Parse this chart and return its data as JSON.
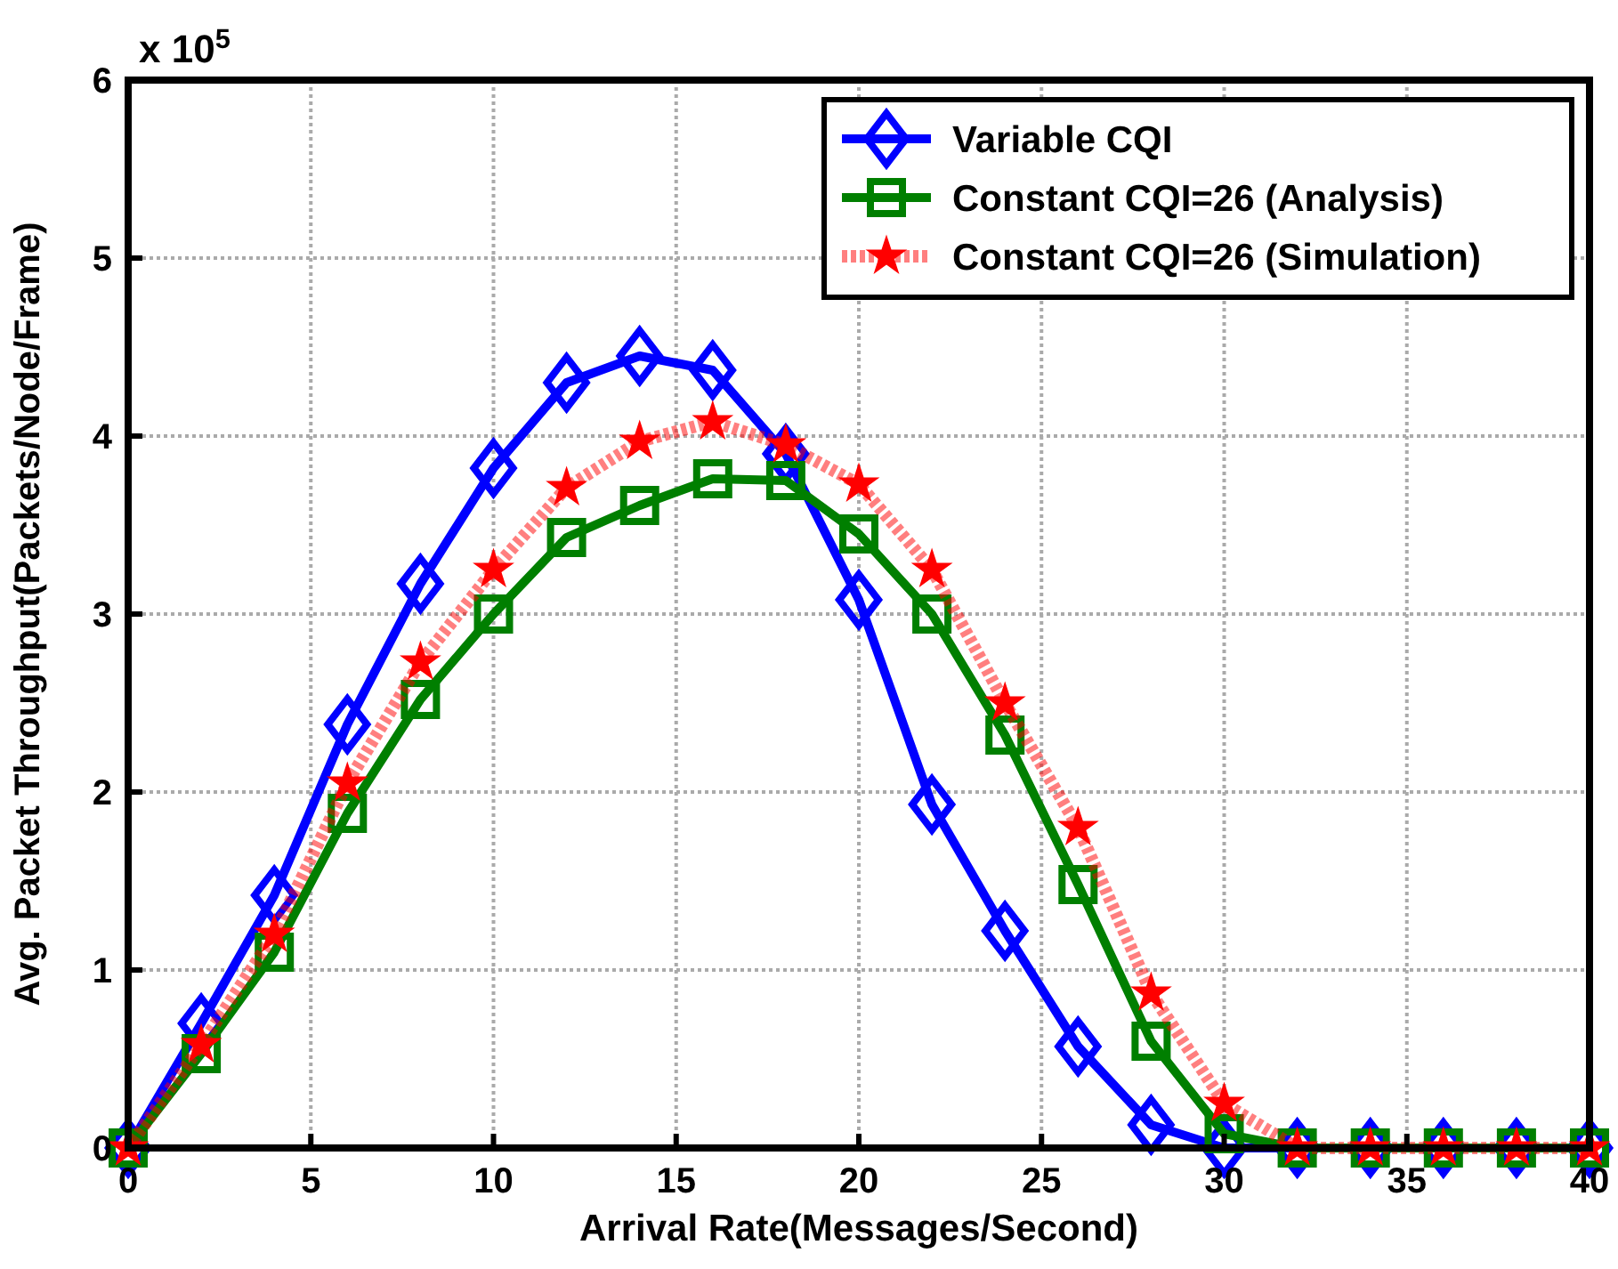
{
  "chart_data": {
    "type": "line",
    "xlabel": "Arrival Rate(Messages/Second)",
    "ylabel": "Avg. Packet Throughput(Packets/Node/Frame)",
    "annotations": [
      "x 10$^{5}$"
    ],
    "x": [
      0,
      2,
      4,
      6,
      8,
      10,
      12,
      14,
      16,
      18,
      20,
      22,
      24,
      26,
      28,
      30,
      32,
      34,
      36,
      38,
      40
    ],
    "xlim": [
      0,
      40
    ],
    "xticks": [
      0,
      5,
      10,
      15,
      20,
      25,
      30,
      35,
      40
    ],
    "ylim": [
      0,
      6
    ],
    "yticks": [
      0,
      1,
      2,
      3,
      4,
      5,
      6
    ],
    "grid": true,
    "legend": "top right",
    "series": [
      {
        "name": "Variable CQI",
        "color": "#0000ff",
        "marker": "diamond",
        "line_style": "solid",
        "values": [
          0,
          0.7,
          1.42,
          2.38,
          3.17,
          3.82,
          4.3,
          4.45,
          4.37,
          3.9,
          3.08,
          1.93,
          1.22,
          0.57,
          0.13,
          0,
          0,
          0,
          0,
          0,
          0
        ]
      },
      {
        "name": "Constant CQI=26 (Analysis)",
        "color": "#007f00",
        "marker": "square",
        "line_style": "solid",
        "values": [
          0,
          0.53,
          1.1,
          1.88,
          2.52,
          3.0,
          3.43,
          3.61,
          3.76,
          3.75,
          3.45,
          3.0,
          2.32,
          1.48,
          0.6,
          0.08,
          0,
          0,
          0,
          0,
          0
        ]
      },
      {
        "name": "Constant CQI=26 (Simulation)",
        "color": "#ff0000",
        "marker": "star",
        "line_style": "dotted",
        "values": [
          0,
          0.58,
          1.2,
          2.05,
          2.73,
          3.25,
          3.71,
          3.97,
          4.08,
          3.95,
          3.73,
          3.25,
          2.5,
          1.8,
          0.87,
          0.25,
          0,
          0,
          0,
          0,
          0
        ]
      }
    ]
  }
}
